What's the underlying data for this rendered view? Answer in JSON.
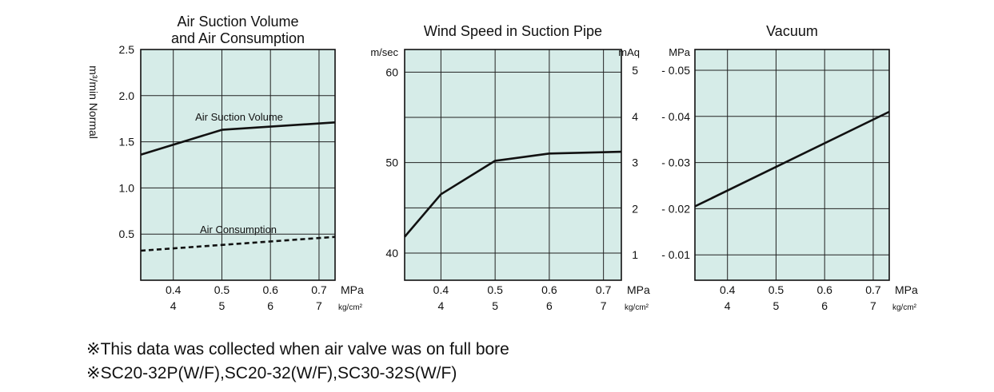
{
  "chart_data": [
    {
      "type": "line",
      "title_lines": [
        "Air Suction Volume",
        "and Air Consumption"
      ],
      "ylabel_left": "m³/min Normal",
      "ylim": [
        0,
        2.5
      ],
      "y_ticks": [
        0.5,
        1.0,
        1.5,
        2.0,
        2.5
      ],
      "y_tick_labels": [
        "0.5",
        "1.0",
        "1.5",
        "2.0",
        "2.5"
      ],
      "xlim": [
        0.333,
        0.733
      ],
      "x_ticks": [
        0.4,
        0.5,
        0.6,
        0.7
      ],
      "x_tick_labels_mpa": [
        "0.4",
        "0.5",
        "0.6",
        "0.7"
      ],
      "x_tick_labels_kgf": [
        "4",
        "5",
        "6",
        "7"
      ],
      "x_unit_mpa": "MPa",
      "x_unit_kgf": "kg/cm²",
      "series": [
        {
          "name": "Air Suction Volume",
          "style": "solid",
          "x": [
            0.333,
            0.5,
            0.733
          ],
          "y": [
            1.36,
            1.63,
            1.71
          ]
        },
        {
          "name": "Air Consumption",
          "style": "dashed",
          "x": [
            0.333,
            0.733
          ],
          "y": [
            0.32,
            0.47
          ]
        }
      ],
      "grid": true,
      "background": "#d6ece8"
    },
    {
      "type": "line",
      "title_lines": [
        "Wind Speed in Suction Pipe"
      ],
      "y_unit_label": "m/sec",
      "ylim": [
        37,
        62.5
      ],
      "y_ticks": [
        40,
        45,
        50,
        55,
        60
      ],
      "y_tick_labels": [
        "40",
        "",
        "50",
        "",
        "60"
      ],
      "xlim": [
        0.333,
        0.733
      ],
      "x_ticks": [
        0.4,
        0.5,
        0.6,
        0.7
      ],
      "x_tick_labels_mpa": [
        "0.4",
        "0.5",
        "0.6",
        "0.7"
      ],
      "x_tick_labels_kgf": [
        "4",
        "5",
        "6",
        "7"
      ],
      "x_unit_mpa": "MPa",
      "x_unit_kgf": "kg/cm²",
      "series": [
        {
          "style": "solid",
          "x": [
            0.333,
            0.4,
            0.5,
            0.6,
            0.733
          ],
          "y": [
            41.8,
            46.5,
            50.2,
            51.0,
            51.2
          ]
        }
      ],
      "grid": true,
      "background": "#d6ece8"
    },
    {
      "type": "line",
      "title_lines": [
        "Vacuum"
      ],
      "y_unit_label_outer": "mAq",
      "y_unit_label_inner": "MPa",
      "ylim": [
        0.0045,
        0.0545
      ],
      "y_ticks": [
        0.01,
        0.02,
        0.03,
        0.04,
        0.05
      ],
      "y_tick_labels_outer": [
        "1",
        "2",
        "3",
        "4",
        "5"
      ],
      "y_tick_labels_inner": [
        "- 0.01",
        "- 0.02",
        "- 0.03",
        "- 0.04",
        "- 0.05"
      ],
      "xlim": [
        0.333,
        0.733
      ],
      "x_ticks": [
        0.4,
        0.5,
        0.6,
        0.7
      ],
      "x_tick_labels_mpa": [
        "0.4",
        "0.5",
        "0.6",
        "0.7"
      ],
      "x_tick_labels_kgf": [
        "4",
        "5",
        "6",
        "7"
      ],
      "x_unit_mpa": "MPa",
      "x_unit_kgf": "kg/cm²",
      "series": [
        {
          "style": "solid",
          "x": [
            0.333,
            0.733
          ],
          "y": [
            0.0205,
            0.041
          ]
        }
      ],
      "grid": true,
      "background": "#d6ece8"
    }
  ],
  "notes": [
    "※This data was collected when air valve was on full bore",
    "※SC20-32P(W/F),SC20-32(W/F),SC30-32S(W/F)"
  ]
}
